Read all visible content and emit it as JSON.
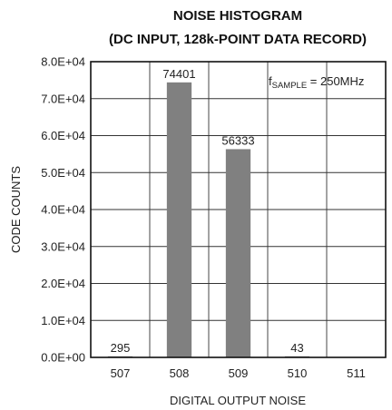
{
  "chart_data": {
    "type": "bar",
    "title_lines": [
      "NOISE HISTOGRAM",
      "(DC INPUT, 128k-POINT DATA RECORD)"
    ],
    "xlabel": "DIGITAL OUTPUT NOISE",
    "ylabel": "CODE COUNTS",
    "categories": [
      "507",
      "508",
      "509",
      "510",
      "511"
    ],
    "values": [
      295,
      74401,
      56333,
      43,
      0
    ],
    "data_labels": [
      "295",
      "74401",
      "56333",
      "43",
      ""
    ],
    "ylim": [
      0,
      80000
    ],
    "yticks": [
      0,
      10000,
      20000,
      30000,
      40000,
      50000,
      60000,
      70000,
      80000
    ],
    "ytick_labels": [
      "0.0E+00",
      "1.0E+04",
      "2.0E+04",
      "3.0E+04",
      "4.0E+04",
      "5.0E+04",
      "6.0E+04",
      "7.0E+04",
      "8.0E+04"
    ],
    "grid": true,
    "annotation": {
      "prefix": "f",
      "subscript": "SAMPLE",
      "suffix": " = 250MHz"
    },
    "bar_color": "#808080"
  }
}
